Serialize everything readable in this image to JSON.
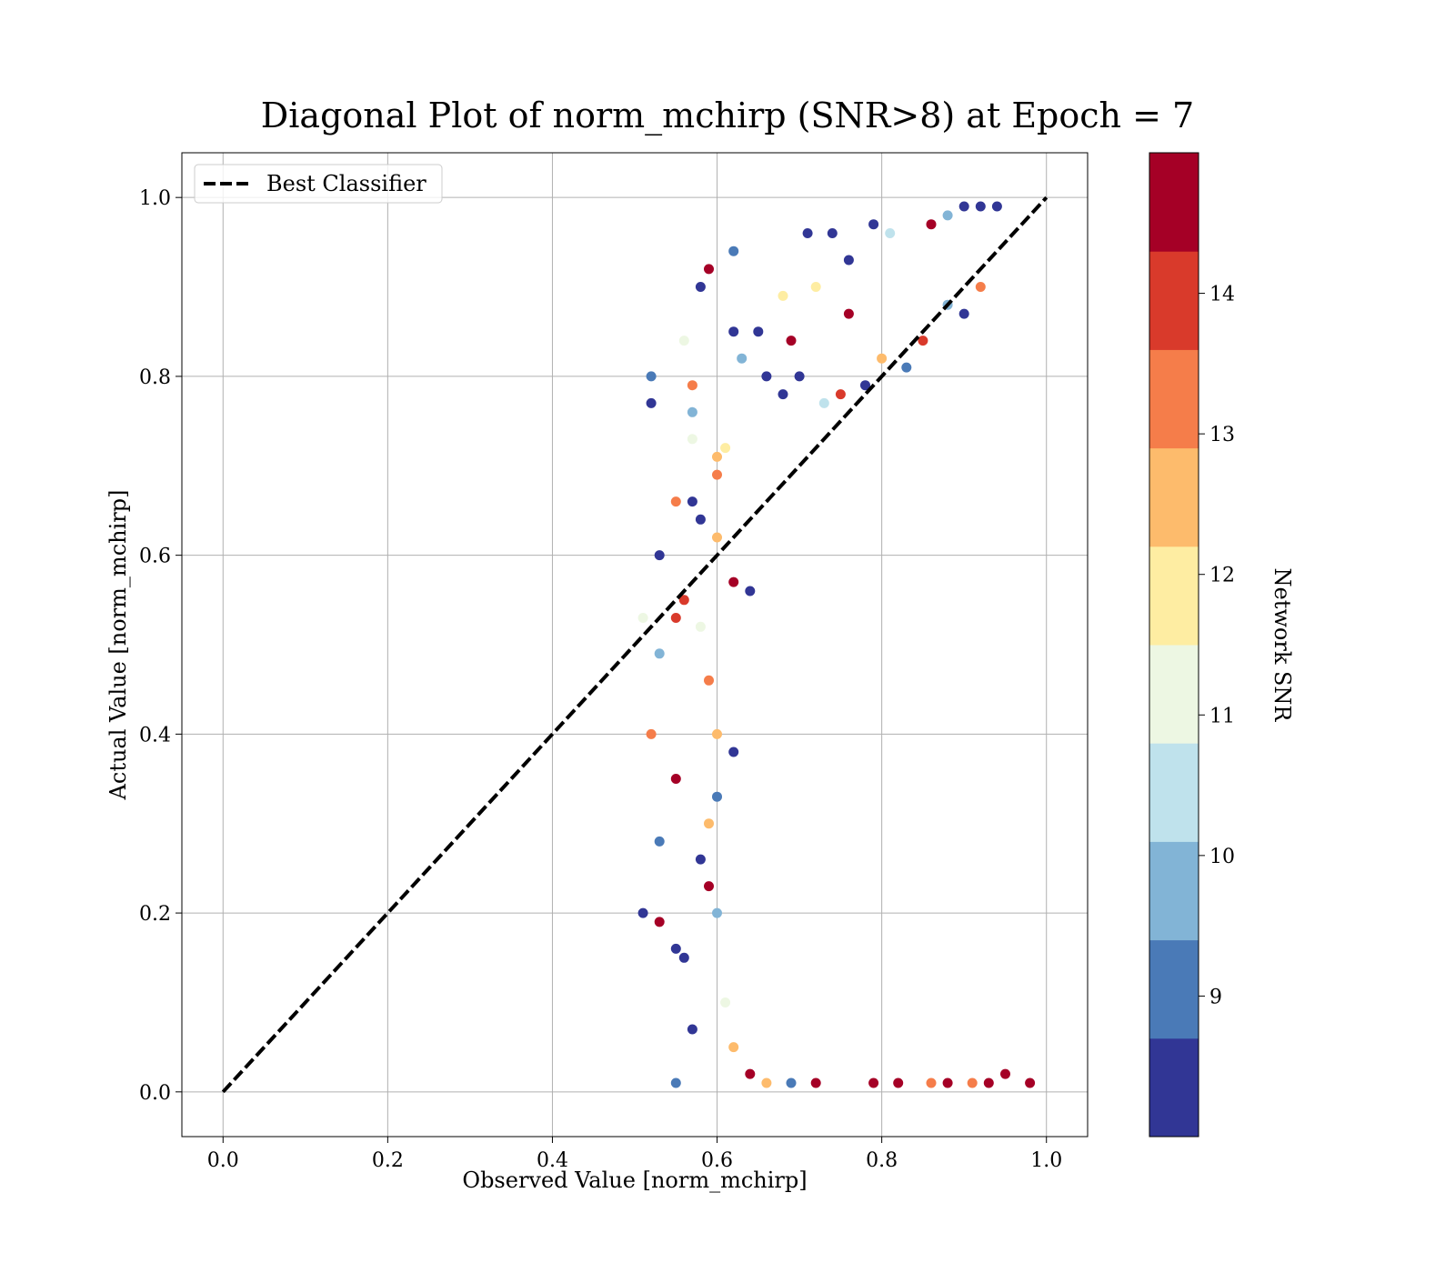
{
  "chart_data": {
    "type": "scatter",
    "title": "Diagonal Plot of norm_mchirp (SNR>8) at Epoch = 7",
    "xlabel": "Observed Value [norm_mchirp]",
    "ylabel": "Actual Value [norm_mchirp]",
    "xlim": [
      -0.05,
      1.05
    ],
    "ylim": [
      -0.05,
      1.05
    ],
    "xticks": [
      "0.0",
      "0.2",
      "0.4",
      "0.6",
      "0.8",
      "1.0"
    ],
    "yticks": [
      "0.0",
      "0.2",
      "0.4",
      "0.6",
      "0.8",
      "1.0"
    ],
    "grid": true,
    "legend": {
      "placement": "upper-left",
      "entries": [
        "Best Classifier"
      ]
    },
    "reference_line": {
      "name": "Best Classifier",
      "style": "dashed",
      "color": "#000000",
      "x": [
        0.0,
        1.0
      ],
      "y": [
        0.0,
        1.0
      ]
    },
    "colorbar": {
      "label": "Network SNR",
      "range": [
        8,
        15
      ],
      "ticks": [
        "9",
        "10",
        "11",
        "12",
        "13",
        "14"
      ],
      "tick_values": [
        9,
        10,
        11,
        12,
        13,
        14
      ],
      "levels": [
        {
          "from": 8.0,
          "to": 8.7,
          "color": "#313695"
        },
        {
          "from": 8.7,
          "to": 9.4,
          "color": "#4a7ab7"
        },
        {
          "from": 9.4,
          "to": 10.1,
          "color": "#82b4d6"
        },
        {
          "from": 10.1,
          "to": 10.8,
          "color": "#bfe2ec"
        },
        {
          "from": 10.8,
          "to": 11.5,
          "color": "#edf7e3"
        },
        {
          "from": 11.5,
          "to": 12.2,
          "color": "#feeda2"
        },
        {
          "from": 12.2,
          "to": 12.9,
          "color": "#fdbb6c"
        },
        {
          "from": 12.9,
          "to": 13.6,
          "color": "#f57d4a"
        },
        {
          "from": 13.6,
          "to": 14.3,
          "color": "#d93a2b"
        },
        {
          "from": 14.3,
          "to": 15.0,
          "color": "#a50026"
        }
      ]
    },
    "points": [
      [
        0.52,
        0.8,
        9.2
      ],
      [
        0.52,
        0.77,
        8.2
      ],
      [
        0.53,
        0.6,
        8.2
      ],
      [
        0.51,
        0.53,
        11.0
      ],
      [
        0.53,
        0.49,
        9.6
      ],
      [
        0.52,
        0.4,
        13.1
      ],
      [
        0.55,
        0.35,
        14.6
      ],
      [
        0.53,
        0.28,
        9.1
      ],
      [
        0.51,
        0.2,
        8.3
      ],
      [
        0.53,
        0.19,
        14.6
      ],
      [
        0.55,
        0.16,
        8.4
      ],
      [
        0.55,
        0.01,
        9.1
      ],
      [
        0.56,
        0.15,
        8.5
      ],
      [
        0.58,
        0.9,
        8.2
      ],
      [
        0.59,
        0.92,
        14.6
      ],
      [
        0.62,
        0.94,
        9.2
      ],
      [
        0.57,
        0.79,
        13.2
      ],
      [
        0.57,
        0.76,
        9.8
      ],
      [
        0.57,
        0.73,
        11.2
      ],
      [
        0.55,
        0.66,
        13.4
      ],
      [
        0.57,
        0.66,
        8.3
      ],
      [
        0.58,
        0.64,
        8.2
      ],
      [
        0.56,
        0.55,
        14.0
      ],
      [
        0.55,
        0.53,
        14.2
      ],
      [
        0.56,
        0.84,
        11.0
      ],
      [
        0.58,
        0.52,
        11.0
      ],
      [
        0.57,
        0.07,
        8.4
      ],
      [
        0.71,
        0.96,
        8.2
      ],
      [
        0.74,
        0.96,
        8.2
      ],
      [
        0.79,
        0.97,
        8.2
      ],
      [
        0.81,
        0.96,
        10.2
      ],
      [
        0.86,
        0.97,
        14.6
      ],
      [
        0.88,
        0.98,
        9.4
      ],
      [
        0.9,
        0.99,
        8.3
      ],
      [
        0.92,
        0.99,
        8.3
      ],
      [
        0.94,
        0.99,
        8.2
      ],
      [
        0.72,
        0.9,
        11.8
      ],
      [
        0.76,
        0.93,
        8.2
      ],
      [
        0.68,
        0.89,
        11.5
      ],
      [
        0.65,
        0.85,
        8.3
      ],
      [
        0.69,
        0.84,
        14.4
      ],
      [
        0.76,
        0.87,
        14.5
      ],
      [
        0.6,
        0.71,
        12.6
      ],
      [
        0.6,
        0.69,
        13.5
      ],
      [
        0.61,
        0.72,
        12.0
      ],
      [
        0.6,
        0.62,
        12.2
      ],
      [
        0.62,
        0.57,
        14.3
      ],
      [
        0.64,
        0.56,
        8.3
      ],
      [
        0.59,
        0.46,
        13.4
      ],
      [
        0.6,
        0.4,
        12.5
      ],
      [
        0.62,
        0.38,
        8.3
      ],
      [
        0.6,
        0.33,
        9.0
      ],
      [
        0.59,
        0.3,
        12.4
      ],
      [
        0.58,
        0.26,
        8.4
      ],
      [
        0.59,
        0.23,
        14.6
      ],
      [
        0.6,
        0.2,
        9.4
      ],
      [
        0.61,
        0.1,
        11.0
      ],
      [
        0.62,
        0.05,
        12.3
      ],
      [
        0.64,
        0.02,
        14.5
      ],
      [
        0.66,
        0.01,
        12.6
      ],
      [
        0.69,
        0.01,
        9.2
      ],
      [
        0.72,
        0.01,
        14.6
      ],
      [
        0.79,
        0.01,
        14.6
      ],
      [
        0.82,
        0.01,
        14.6
      ],
      [
        0.86,
        0.01,
        13.0
      ],
      [
        0.88,
        0.01,
        14.6
      ],
      [
        0.91,
        0.01,
        12.9
      ],
      [
        0.93,
        0.01,
        14.4
      ],
      [
        0.95,
        0.02,
        14.6
      ],
      [
        0.98,
        0.01,
        14.6
      ],
      [
        0.62,
        0.85,
        8.3
      ],
      [
        0.63,
        0.82,
        9.5
      ],
      [
        0.66,
        0.8,
        8.3
      ],
      [
        0.68,
        0.78,
        8.2
      ],
      [
        0.7,
        0.8,
        8.2
      ],
      [
        0.73,
        0.77,
        10.6
      ],
      [
        0.75,
        0.78,
        14.1
      ],
      [
        0.78,
        0.79,
        8.4
      ],
      [
        0.8,
        0.82,
        12.2
      ],
      [
        0.83,
        0.81,
        9.1
      ],
      [
        0.85,
        0.84,
        14.0
      ],
      [
        0.88,
        0.88,
        9.7
      ],
      [
        0.9,
        0.87,
        8.2
      ],
      [
        0.92,
        0.9,
        13.0
      ]
    ]
  }
}
